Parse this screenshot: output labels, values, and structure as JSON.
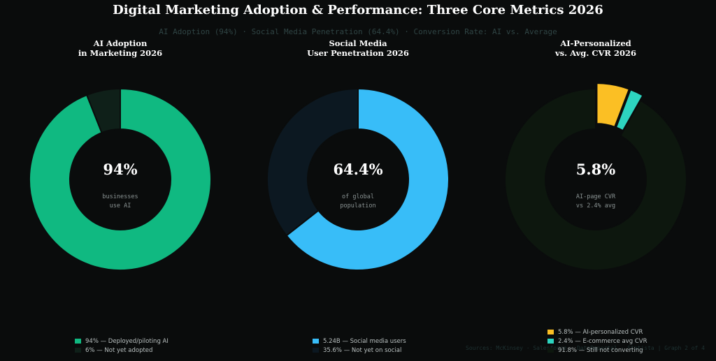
{
  "title": "Digital Marketing Adoption & Performance: Three Core Metrics  2026",
  "subtitle": "AI Adoption (94%)  ·  Social Media Penetration (64.4%)  ·  Conversion Rate: AI vs. Average",
  "source": "Sources: McKinsey · Salesforce · DataReportal · Statista  |  Graph 2 of 4",
  "colors": {
    "background": "#0a0c0c",
    "ai_adopted": "#10b981",
    "ai_not": "#0f2019",
    "social_users": "#38bdf8",
    "social_not": "#0c1821",
    "cvr_ai": "#fbbf24",
    "cvr_ecom": "#2dd4bf",
    "cvr_rest": "#0d170e"
  },
  "chart_data": [
    {
      "type": "pie",
      "variant": "donut",
      "title_lines": [
        "AI Adoption",
        "in Marketing 2026"
      ],
      "center_value": "94%",
      "center_note": [
        "businesses",
        "use AI"
      ],
      "slices": [
        {
          "label": "94% — Deployed/piloting AI",
          "value": 94,
          "color": "#10b981"
        },
        {
          "label": "6% — Not yet adopted",
          "value": 6,
          "color": "#0f2019"
        }
      ]
    },
    {
      "type": "pie",
      "variant": "donut",
      "title_lines": [
        "Social Media",
        "User Penetration 2026"
      ],
      "center_value": "64.4%",
      "center_note": [
        "of global",
        "population"
      ],
      "slices": [
        {
          "label": "5.24B — Social media users",
          "value": 64.4,
          "color": "#38bdf8"
        },
        {
          "label": "35.6% — Not yet on social",
          "value": 35.6,
          "color": "#0c1821"
        }
      ]
    },
    {
      "type": "pie",
      "variant": "donut",
      "title_lines": [
        "AI-Personalized",
        "vs. Avg. CVR 2026"
      ],
      "center_value": "5.8%",
      "center_note": [
        "AI-page CVR",
        "vs 2.4% avg"
      ],
      "slices": [
        {
          "label": "5.8% — AI-personalized CVR",
          "value": 5.8,
          "color": "#fbbf24",
          "exploded": true
        },
        {
          "label": "2.4% — E-commerce avg CVR",
          "value": 2.4,
          "color": "#2dd4bf",
          "exploded": true
        },
        {
          "label": "91.8% — Still not converting",
          "value": 91.8,
          "color": "#0d170e"
        }
      ]
    }
  ]
}
